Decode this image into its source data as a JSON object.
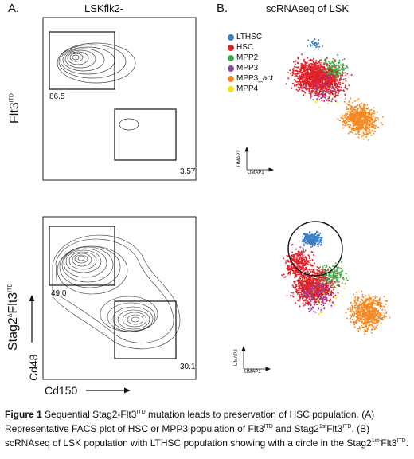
{
  "panels": {
    "a_letter": "A.",
    "b_letter": "B.",
    "a_title": "LSKflk2-",
    "b_title": "scRNAseq of LSK"
  },
  "rows": {
    "top_label_main": "Flt3",
    "top_label_sup": "ITD",
    "bottom_label_main": "Stag2",
    "bottom_label_delta": "Δ",
    "bottom_label_mid": "Flt3",
    "bottom_label_sup": "ITD"
  },
  "facs": {
    "top_gate1_pct": "86.5",
    "top_gate2_pct": "3.57",
    "bottom_gate1_pct": "49.0",
    "bottom_gate2_pct": "30.1",
    "x_axis": "Cd150",
    "y_axis": "Cd48"
  },
  "legend": [
    {
      "label": "LTHSC",
      "color": "#3a7fc4"
    },
    {
      "label": "HSC",
      "color": "#e0202a"
    },
    {
      "label": "MPP2",
      "color": "#3fae49"
    },
    {
      "label": "MPP3",
      "color": "#8e4aa6"
    },
    {
      "label": "MPP3_act",
      "color": "#f58a24"
    },
    {
      "label": "MPP4",
      "color": "#f2e21c"
    }
  ],
  "umap": {
    "axis1": "UMAP1",
    "axis2": "UMAP2"
  },
  "caption": {
    "bold": "Figure 1",
    "t1": " Sequential Stag2-Flt3",
    "s1": "ITD",
    "t2": " mutation leads to preservation of HSC population. (A) Representative FACS plot of HSC or MPP3 population of Flt3",
    "s2": "ITD",
    "t3": " and Stag2",
    "s3": "1st",
    "t4": "Flt3",
    "s4": "ITD",
    "t5": ". (B) scRNAseq of LSK population with LTHSC population showing with a circle in the Stag2",
    "s5": "1st-",
    "t6": "Flt3",
    "s6": "ITD",
    "t7": "."
  }
}
